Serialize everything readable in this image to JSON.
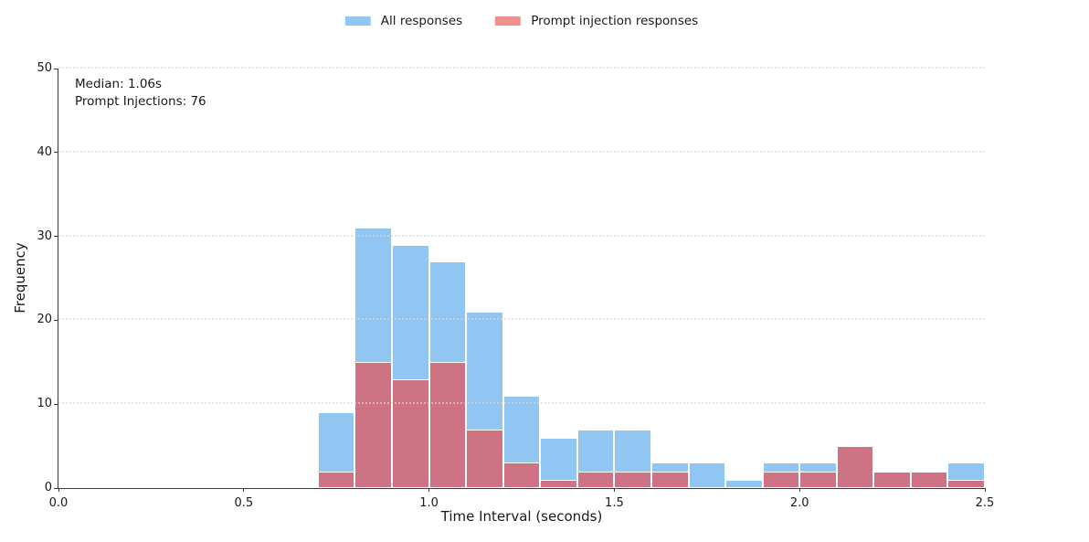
{
  "figure": {
    "background": "#ffffff",
    "text_color": "#1a1a1a"
  },
  "legend": {
    "items": [
      {
        "label": "All responses",
        "swatch_color": "#92c6f2"
      },
      {
        "label": "Prompt injection responses",
        "swatch_color": "#f18f8f"
      }
    ]
  },
  "annotation": {
    "line1": "Median: 1.06s",
    "line2": "Prompt Injections: 76"
  },
  "axes": {
    "xlabel": "Time Interval (seconds)",
    "ylabel": "Frequency",
    "xtick_labels": [
      "0.0",
      "0.5",
      "1.0",
      "1.5",
      "2.0",
      "2.5"
    ],
    "ytick_labels": [
      "0",
      "10",
      "20",
      "30",
      "40",
      "50"
    ]
  },
  "chart_data": {
    "type": "bar",
    "subtype": "overlaid-histogram",
    "title": "",
    "xlabel": "Time Interval (seconds)",
    "ylabel": "Frequency",
    "xlim": [
      0,
      2.5
    ],
    "ylim": [
      0,
      50
    ],
    "xticks": [
      0,
      0.5,
      1.0,
      1.5,
      2.0,
      2.5
    ],
    "yticks": [
      0,
      10,
      20,
      30,
      40,
      50
    ],
    "grid": "horizontal-dotted",
    "legend_position": "top-center",
    "bin_start": 0.7,
    "bin_width": 0.1,
    "bin_edges": [
      0.7,
      0.8,
      0.9,
      1.0,
      1.1,
      1.2,
      1.3,
      1.4,
      1.5,
      1.6,
      1.7,
      1.8,
      1.9,
      2.0,
      2.1,
      2.2,
      2.3,
      2.4,
      2.5
    ],
    "series": [
      {
        "name": "All responses",
        "color": "#92c6f2",
        "values": [
          9,
          31,
          29,
          27,
          21,
          11,
          6,
          7,
          7,
          3,
          3,
          1,
          3,
          3,
          5,
          2,
          2,
          3
        ]
      },
      {
        "name": "Prompt injection responses",
        "color": "#cd7384",
        "values": [
          2,
          15,
          13,
          15,
          7,
          3,
          1,
          2,
          2,
          2,
          0,
          0,
          2,
          2,
          5,
          2,
          2,
          1
        ]
      }
    ],
    "annotations": [
      "Median: 1.06s",
      "Prompt Injections: 76"
    ]
  }
}
